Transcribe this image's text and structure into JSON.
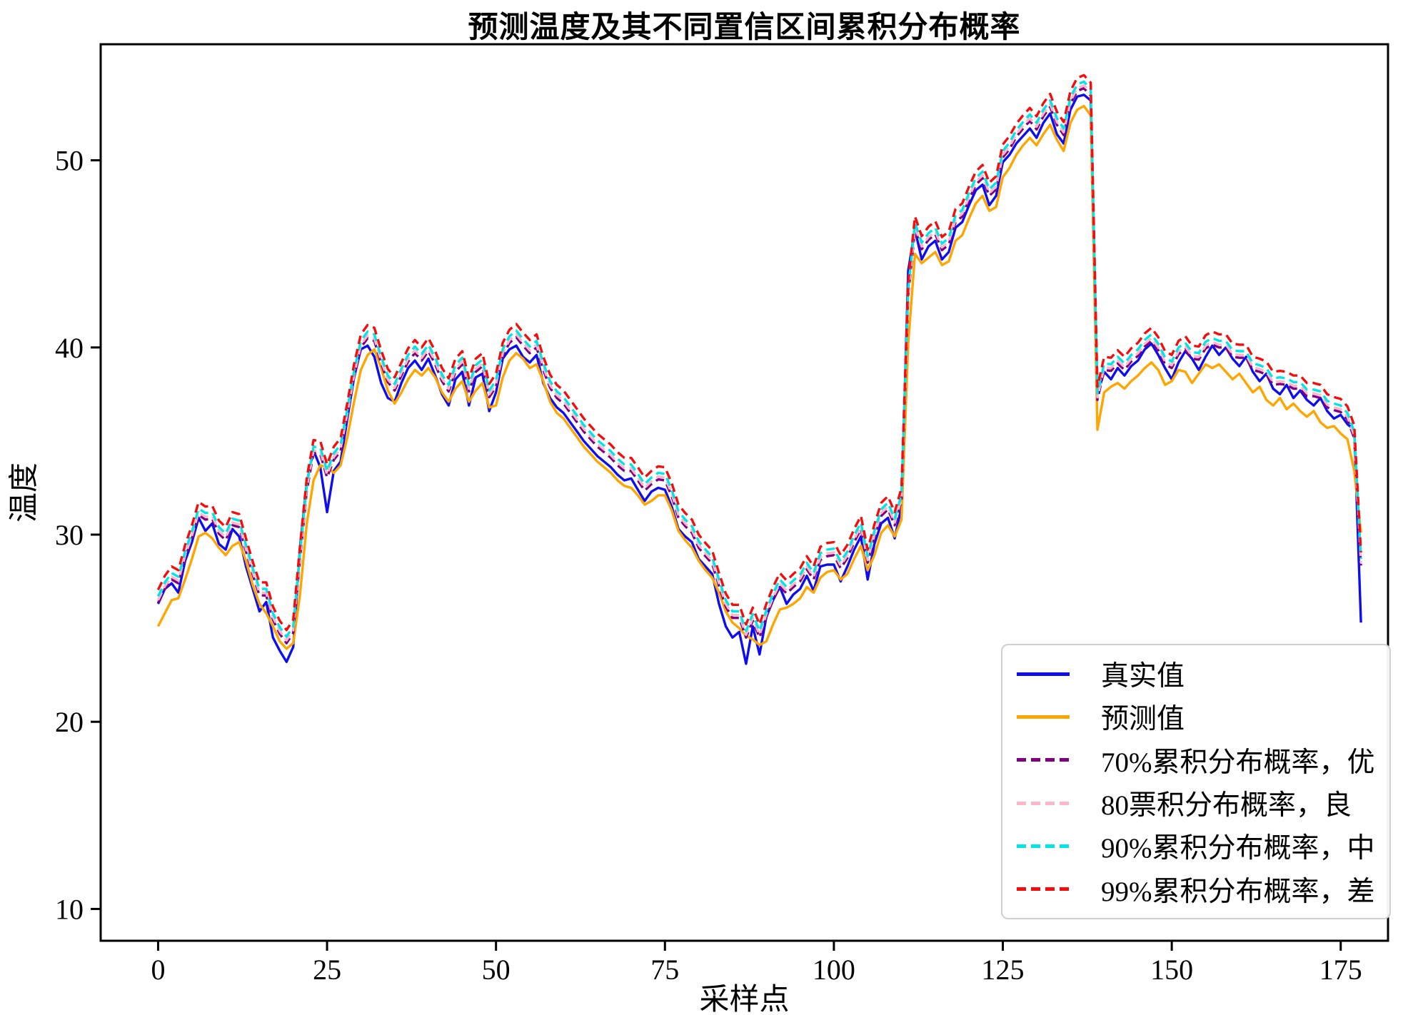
{
  "page": {
    "background": "#ffffff"
  },
  "chart_data": {
    "type": "line",
    "title": "预测温度及其不同置信区间累积分布概率",
    "xlabel": "采样点",
    "ylabel": "温度",
    "xlim": [
      -8.5,
      182
    ],
    "ylim": [
      8.3,
      56.2
    ],
    "xticks": [
      0,
      25,
      50,
      75,
      100,
      125,
      150,
      175
    ],
    "yticks": [
      10,
      20,
      30,
      40,
      50
    ],
    "grid": false,
    "legend_position": "lower right",
    "x_start": 0,
    "x_step": 1,
    "n_points": 179,
    "axis_color": "#000000",
    "series": [
      {
        "name": "真实值",
        "color": "#0d0df0",
        "style": "solid",
        "role": "true-values",
        "values": [
          26.3,
          27.1,
          27.4,
          26.9,
          28.6,
          29.6,
          30.9,
          30.2,
          30.6,
          29.5,
          29.2,
          30.3,
          29.9,
          28.3,
          27.1,
          25.9,
          26.4,
          24.5,
          23.8,
          23.2,
          24.0,
          29.3,
          32.8,
          34.5,
          33.6,
          31.2,
          33.4,
          33.9,
          36.2,
          38.4,
          39.9,
          40.1,
          39.5,
          38.1,
          37.3,
          37.1,
          38.1,
          38.9,
          39.3,
          38.8,
          39.4,
          38.5,
          37.5,
          36.9,
          38.3,
          38.7,
          36.9,
          38.4,
          38.6,
          36.6,
          37.6,
          39.4,
          39.9,
          40.1,
          39.5,
          39.2,
          39.6,
          38.1,
          37.3,
          36.8,
          36.5,
          36.0,
          35.5,
          35.0,
          34.6,
          34.2,
          33.9,
          33.6,
          33.2,
          32.9,
          33.0,
          32.4,
          31.8,
          32.3,
          32.5,
          32.4,
          31.5,
          30.3,
          29.9,
          29.6,
          28.7,
          28.3,
          27.9,
          26.3,
          25.1,
          24.5,
          24.8,
          23.1,
          25.1,
          23.6,
          25.6,
          26.5,
          27.2,
          26.3,
          26.8,
          27.1,
          27.8,
          27.0,
          28.3,
          28.4,
          28.4,
          27.5,
          28.3,
          29.2,
          29.9,
          27.6,
          29.5,
          30.6,
          30.9,
          29.8,
          31.5,
          44.1,
          46.3,
          44.7,
          45.4,
          45.7,
          44.7,
          45.1,
          46.4,
          46.7,
          47.6,
          48.4,
          48.7,
          47.6,
          48.1,
          49.9,
          50.3,
          50.9,
          51.3,
          51.7,
          51.2,
          52.0,
          52.5,
          51.4,
          50.9,
          52.7,
          53.4,
          53.5,
          53.2,
          37.5,
          38.7,
          38.3,
          38.9,
          38.5,
          39.0,
          39.3,
          39.9,
          40.2,
          39.6,
          38.9,
          38.3,
          39.2,
          39.8,
          39.4,
          38.8,
          39.5,
          40.1,
          39.6,
          40.0,
          39.4,
          39.0,
          39.5,
          38.7,
          38.2,
          38.6,
          37.8,
          37.5,
          38.0,
          37.3,
          37.7,
          37.2,
          36.9,
          37.3,
          36.6,
          36.2,
          36.4,
          35.9,
          35.6,
          25.3
        ]
      },
      {
        "name": "预测值",
        "color": "#ffa500",
        "style": "solid",
        "role": "predicted-values",
        "values": [
          25.1,
          25.8,
          26.5,
          26.6,
          27.6,
          28.7,
          29.9,
          30.1,
          29.8,
          29.3,
          28.9,
          29.4,
          29.6,
          28.6,
          27.3,
          26.3,
          25.8,
          25.1,
          24.3,
          23.9,
          24.2,
          26.8,
          30.6,
          32.9,
          33.7,
          33.6,
          33.3,
          33.7,
          35.2,
          37.1,
          38.8,
          39.6,
          39.9,
          38.9,
          37.7,
          37.0,
          37.6,
          38.3,
          38.8,
          38.5,
          38.9,
          38.4,
          37.6,
          37.1,
          37.8,
          38.2,
          37.1,
          37.7,
          38.1,
          36.8,
          36.9,
          38.4,
          39.3,
          39.7,
          39.4,
          38.9,
          39.1,
          38.2,
          37.1,
          36.5,
          36.2,
          35.7,
          35.2,
          34.7,
          34.3,
          33.9,
          33.6,
          33.3,
          32.9,
          32.6,
          32.5,
          32.1,
          31.6,
          31.8,
          32.1,
          32.1,
          31.3,
          30.2,
          29.7,
          29.3,
          28.6,
          28.1,
          27.7,
          26.9,
          25.9,
          25.3,
          25.0,
          24.6,
          24.4,
          24.1,
          24.3,
          25.2,
          26.0,
          26.1,
          26.3,
          26.6,
          27.2,
          26.9,
          27.7,
          28.0,
          28.1,
          27.6,
          27.9,
          28.7,
          29.4,
          28.1,
          28.9,
          30.1,
          30.5,
          29.9,
          30.8,
          40.2,
          45.0,
          44.5,
          44.8,
          45.1,
          44.4,
          44.6,
          45.7,
          46.0,
          46.9,
          47.7,
          48.1,
          47.3,
          47.5,
          49.1,
          49.6,
          50.3,
          50.8,
          51.2,
          50.8,
          51.4,
          51.9,
          51.1,
          50.5,
          52.0,
          52.7,
          52.9,
          52.4,
          35.6,
          37.6,
          37.9,
          38.1,
          37.8,
          38.2,
          38.5,
          38.9,
          39.2,
          38.8,
          38.0,
          38.2,
          38.8,
          38.7,
          38.1,
          38.6,
          39.1,
          38.9,
          39.1,
          38.7,
          38.3,
          38.6,
          38.1,
          37.6,
          37.9,
          37.2,
          36.9,
          37.3,
          36.7,
          37.0,
          36.6,
          36.3,
          36.6,
          36.0,
          35.7,
          35.8,
          35.4,
          35.1,
          33.4,
          30.1
        ]
      },
      {
        "name": "70%累积分布概率，优",
        "color": "#800080",
        "style": "dashed",
        "role": "quantile-70",
        "offset_above_midpoint": 0.65
      },
      {
        "name": "80票积分布概率，良",
        "color": "#ffb6c8",
        "style": "dashed",
        "role": "quantile-80",
        "offset_above_midpoint": 0.8
      },
      {
        "name": "90%累积分布概率，中",
        "color": "#00e6e6",
        "style": "dashed",
        "role": "quantile-90",
        "offset_above_midpoint": 1.0
      },
      {
        "name": "99%累积分布概率，差",
        "color": "#f50d0d",
        "style": "dashed",
        "role": "quantile-99",
        "offset_above_midpoint": 1.35
      }
    ]
  }
}
